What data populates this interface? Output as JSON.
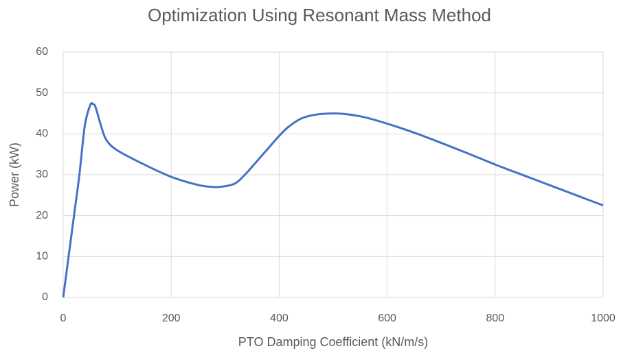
{
  "chart_data": {
    "type": "line",
    "title": "Optimization Using Resonant Mass Method",
    "x_label": "PTO Damping Coefficient (kN/m/s)",
    "y_label": "Power (kW)",
    "x": [
      0,
      10,
      20,
      30,
      40,
      50,
      55,
      60,
      70,
      80,
      100,
      150,
      200,
      250,
      280,
      300,
      320,
      340,
      360,
      380,
      400,
      420,
      450,
      500,
      550,
      600,
      650,
      700,
      750,
      800,
      850,
      900,
      950,
      1000
    ],
    "series": [
      {
        "name": "Power",
        "color": "#4472c4",
        "values": [
          0,
          10,
          20,
          30,
          42,
          47,
          47.3,
          46.5,
          42,
          38.5,
          36,
          32.5,
          29.5,
          27.5,
          27,
          27.2,
          28,
          30.5,
          33.5,
          36.5,
          39.5,
          42,
          44.2,
          45,
          44.3,
          42.5,
          40.3,
          37.8,
          35.2,
          32.5,
          30,
          27.5,
          25,
          22.5
        ]
      }
    ],
    "xlim": [
      0,
      1000
    ],
    "xticks": [
      0,
      200,
      400,
      600,
      800,
      1000
    ],
    "ylim": [
      0,
      60
    ],
    "yticks": [
      0,
      10,
      20,
      30,
      40,
      50,
      60
    ],
    "grid": true
  }
}
